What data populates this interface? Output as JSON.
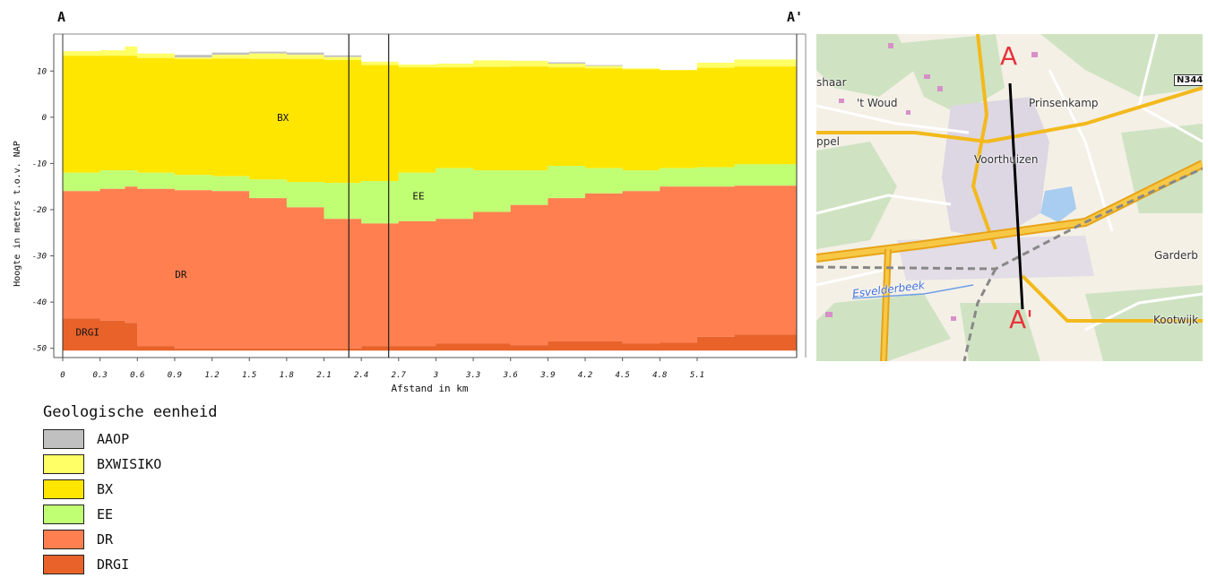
{
  "section": {
    "start_label": "A",
    "end_label": "A'"
  },
  "chart_data": {
    "type": "area",
    "title": "",
    "xlabel": "Afstand in km",
    "ylabel": "Hoogte in meters t.o.v. NAP",
    "xlim": [
      0,
      5.9
    ],
    "ylim": [
      -52,
      18
    ],
    "x_ticks": [
      "0",
      "0.3",
      "0.6",
      "0.9",
      "1.2",
      "1.5",
      "1.8",
      "2.1",
      "2.4",
      "2.7",
      "3",
      "3.3",
      "3.6",
      "3.9",
      "4.2",
      "4.5",
      "4.8",
      "5.1"
    ],
    "y_ticks": [
      "10",
      "0",
      "-10",
      "-20",
      "-30",
      "-40",
      "-50"
    ],
    "grid": false,
    "vertical_markers_km": [
      2.3,
      2.62
    ],
    "legend_title": "Geologische eenheid",
    "units": [
      {
        "code": "AAOP",
        "color": "#c0c0c0"
      },
      {
        "code": "BXWISIKO",
        "color": "#ffff66"
      },
      {
        "code": "BX",
        "color": "#ffe600"
      },
      {
        "code": "EE",
        "color": "#c0ff73"
      },
      {
        "code": "DR",
        "color": "#ff7f50"
      },
      {
        "code": "DRGI",
        "color": "#e8622a"
      }
    ],
    "unit_labels": [
      {
        "code": "BX",
        "x": 1.77,
        "y": 0
      },
      {
        "code": "EE",
        "x": 2.86,
        "y": -17
      },
      {
        "code": "DR",
        "x": 0.95,
        "y": -34
      },
      {
        "code": "DRGI",
        "x": 0.2,
        "y": -46.5
      }
    ],
    "boundaries": {
      "x": [
        0,
        0.3,
        0.5,
        0.6,
        0.9,
        1.2,
        1.5,
        1.8,
        2.1,
        2.4,
        2.7,
        3.0,
        3.3,
        3.6,
        3.9,
        4.2,
        4.5,
        4.8,
        5.1,
        5.4,
        5.9
      ],
      "surface": [
        14.3,
        14.5,
        15.3,
        13.8,
        13.5,
        14.0,
        14.2,
        14.0,
        13.4,
        12.0,
        11.4,
        11.6,
        12.3,
        12.2,
        11.9,
        11.3,
        10.6,
        10.0,
        11.8,
        12.5,
        12.2
      ],
      "aaop_base": [
        14.3,
        14.5,
        15.3,
        13.8,
        12.9,
        13.5,
        13.8,
        13.5,
        13.0,
        12.0,
        11.4,
        11.6,
        12.3,
        12.2,
        11.6,
        11.1,
        10.6,
        10.0,
        11.8,
        12.5,
        12.2
      ],
      "bxw_base": [
        13.3,
        13.3,
        13.3,
        12.8,
        12.6,
        12.7,
        12.6,
        12.6,
        12.4,
        11.3,
        10.8,
        10.8,
        10.9,
        11.0,
        10.8,
        10.6,
        10.4,
        10.2,
        10.7,
        11.0,
        10.9
      ],
      "bx_base": [
        -12.0,
        -11.5,
        -11.5,
        -12.0,
        -12.5,
        -12.8,
        -13.5,
        -14.0,
        -14.2,
        -13.8,
        -12.0,
        -11.0,
        -11.5,
        -11.5,
        -10.5,
        -11.0,
        -11.5,
        -11.0,
        -10.8,
        -10.2,
        -10.0
      ],
      "ee_base": [
        -16.0,
        -15.5,
        -15.0,
        -15.5,
        -15.8,
        -16.0,
        -17.5,
        -19.5,
        -22.0,
        -23.0,
        -22.5,
        -22.0,
        -20.5,
        -19.0,
        -17.5,
        -16.5,
        -16.0,
        -15.0,
        -15.0,
        -14.8,
        -14.8
      ],
      "drgi_top": [
        -43.5,
        -44.0,
        -44.5,
        -49.5,
        -50.0,
        -50.0,
        -50.0,
        -50.0,
        -50.0,
        -49.5,
        -49.5,
        -49.0,
        -49.0,
        -49.3,
        -48.5,
        -48.5,
        -49.0,
        -48.8,
        -47.5,
        -47.0,
        -45.5
      ],
      "base": [
        -50.5,
        -50.5,
        -50.5,
        -50.5,
        -50.5,
        -50.5,
        -50.5,
        -50.5,
        -50.5,
        -50.5,
        -50.5,
        -50.5,
        -50.5,
        -50.5,
        -50.5,
        -50.5,
        -50.5,
        -50.5,
        -50.5,
        -50.5,
        -50.5
      ]
    }
  },
  "map": {
    "point_a": "A",
    "point_a2": "A'",
    "places": {
      "shaar": "shaar",
      "woud": "'t Woud",
      "prinsenkamp": "Prinsenkamp",
      "voorthuizen": "Voorthuizen",
      "ppel": "ppel",
      "garderb": "Garderb",
      "kootwijk": "Kootwijk",
      "esvelderbeek": "Esvelderbeek"
    },
    "road_badge": "N344",
    "colors": {
      "land": "#f4f0e6",
      "forest": "#cfe3c2",
      "urban": "#ddd6e3",
      "road": "#f3b91c",
      "water": "#a8cdf0",
      "section_line": "#000000"
    }
  }
}
